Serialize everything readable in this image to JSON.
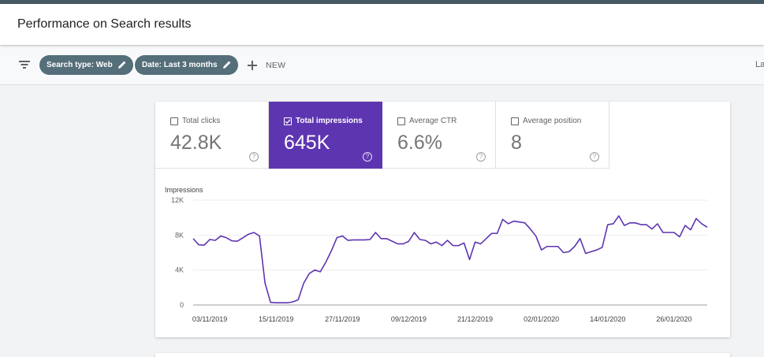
{
  "header": {
    "title": "Performance on Search results"
  },
  "filters": {
    "chips": [
      {
        "label": "Search type: Web"
      },
      {
        "label": "Date: Last 3 months"
      }
    ],
    "new_label": "NEW",
    "last_update": "La"
  },
  "metrics": [
    {
      "label": "Total clicks",
      "value": "42.8K",
      "selected": false
    },
    {
      "label": "Total impressions",
      "value": "645K",
      "selected": true
    },
    {
      "label": "Average CTR",
      "value": "6.6%",
      "selected": false
    },
    {
      "label": "Average position",
      "value": "8",
      "selected": false
    }
  ],
  "colors": {
    "accent": "#5e35b1",
    "chip": "#546e7a",
    "line": "#5e35b1"
  },
  "chart_data": {
    "type": "line",
    "ylabel": "Impressions",
    "ylim": [
      0,
      12000
    ],
    "y_ticks": [
      0,
      4000,
      8000,
      12000
    ],
    "y_tick_labels": [
      "0",
      "4K",
      "8K",
      "12K"
    ],
    "x_tick_labels": [
      "03/11/2019",
      "15/11/2019",
      "27/11/2019",
      "09/12/2019",
      "21/12/2019",
      "02/01/2020",
      "14/01/2020",
      "26/01/2020"
    ],
    "x_start": "31/10/2019",
    "series": [
      {
        "name": "Impressions",
        "values": [
          7600,
          6900,
          6850,
          7500,
          7400,
          7900,
          7700,
          7350,
          7300,
          7700,
          8100,
          8300,
          7900,
          2500,
          300,
          250,
          250,
          250,
          350,
          600,
          2500,
          3600,
          4000,
          3800,
          4900,
          6200,
          7700,
          7900,
          7400,
          7450,
          7450,
          7450,
          7500,
          8300,
          7600,
          7600,
          7300,
          7000,
          7000,
          7300,
          8300,
          7500,
          7400,
          7000,
          7200,
          6800,
          7400,
          6800,
          6800,
          7100,
          5200,
          7200,
          7000,
          7600,
          8200,
          8200,
          9800,
          9300,
          9600,
          9500,
          9400,
          8700,
          7900,
          6300,
          6700,
          6700,
          6700,
          6000,
          6100,
          6700,
          7600,
          5900,
          6100,
          6300,
          6600,
          9200,
          9300,
          10200,
          9100,
          9400,
          9400,
          9200,
          9200,
          8700,
          9300,
          8300,
          8300,
          8300,
          7800,
          9100,
          8600,
          9900,
          9300,
          8900
        ]
      }
    ]
  }
}
